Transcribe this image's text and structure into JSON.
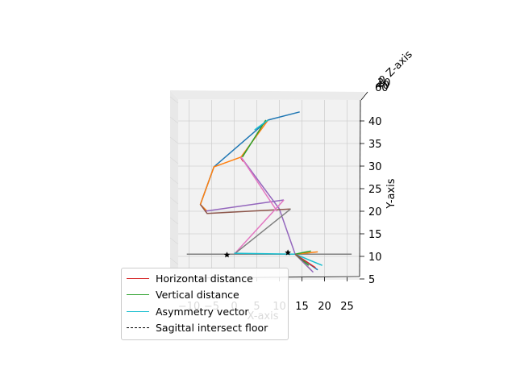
{
  "chart_data": {
    "type": "line",
    "projection": "3d",
    "xlabel": "X-axis",
    "ylabel": "Y-axis",
    "zlabel": "Z-axis",
    "x_ticks": [
      "−10",
      "−5",
      "0",
      "5",
      "10",
      "15",
      "20",
      "25"
    ],
    "y_ticks": [
      "5",
      "10",
      "15",
      "20",
      "25",
      "30",
      "35",
      "40"
    ],
    "z_ticks": [
      "60",
      "40",
      "20",
      "0"
    ],
    "grid": true,
    "legend_position": "lower-left",
    "legend": [
      {
        "label": "Horizontal distance",
        "color": "#d62728",
        "style": "solid"
      },
      {
        "label": "Vertical distance",
        "color": "#2ca02c",
        "style": "solid"
      },
      {
        "label": "Asymmetry vector",
        "color": "#17becf",
        "style": "solid"
      },
      {
        "label": "Sagittal intersect floor",
        "color": "#000000",
        "style": "dashed"
      }
    ],
    "skeleton_segments": [
      {
        "color": "#1f77b4",
        "points": [
          [
            14.5,
            42
          ],
          [
            7.5,
            40.2
          ],
          [
            -4.5,
            29.8
          ],
          [
            -7.5,
            21.5
          ]
        ]
      },
      {
        "color": "#ff7f0e",
        "points": [
          [
            7.5,
            40.2
          ],
          [
            1.5,
            32
          ],
          [
            -4.5,
            29.8
          ],
          [
            -7.5,
            21.5
          ],
          [
            -6,
            20
          ]
        ]
      },
      {
        "color": "#2ca02c",
        "points": [
          [
            7,
            40.2
          ],
          [
            1.8,
            32
          ]
        ]
      },
      {
        "color": "#17becf",
        "points": [
          [
            7.5,
            40.2
          ],
          [
            4.5,
            38
          ]
        ]
      },
      {
        "color": "#d62728",
        "points": [
          [
            1.5,
            31.8
          ],
          [
            2,
            31
          ]
        ]
      },
      {
        "color": "#9467bd",
        "points": [
          [
            1.5,
            32
          ],
          [
            10,
            20.5
          ],
          [
            13.5,
            10.5
          ],
          [
            15,
            9
          ]
        ]
      },
      {
        "color": "#9467bd",
        "points": [
          [
            -6.5,
            20
          ],
          [
            11,
            22.5
          ]
        ]
      },
      {
        "color": "#8c564b",
        "points": [
          [
            -7.5,
            21.5
          ],
          [
            -6,
            19.5
          ],
          [
            12.5,
            20.5
          ]
        ]
      },
      {
        "color": "#e377c2",
        "points": [
          [
            1.5,
            32
          ],
          [
            9.5,
            20
          ]
        ]
      },
      {
        "color": "#e377c2",
        "points": [
          [
            0,
            10.5
          ],
          [
            11,
            22.5
          ]
        ]
      },
      {
        "color": "#7f7f7f",
        "points": [
          [
            0,
            10.5
          ],
          [
            12.5,
            20.5
          ]
        ]
      },
      {
        "color": "#7f7f7f",
        "points": [
          [
            -10.5,
            10.5
          ],
          [
            26,
            10.5
          ]
        ]
      },
      {
        "color": "#bcbd22",
        "points": [
          [
            13.5,
            10.5
          ],
          [
            17,
            7
          ]
        ]
      },
      {
        "color": "#17becf",
        "points": [
          [
            13.5,
            10.5
          ],
          [
            0,
            10.7
          ]
        ]
      },
      {
        "color": "#ff7f0e",
        "points": [
          [
            13.5,
            10.5
          ],
          [
            18.5,
            11
          ]
        ]
      },
      {
        "color": "#2ca02c",
        "points": [
          [
            13.5,
            10.5
          ],
          [
            17,
            11.2
          ]
        ]
      },
      {
        "color": "#17becf",
        "points": [
          [
            13.5,
            10.5
          ],
          [
            19.5,
            8
          ]
        ]
      },
      {
        "color": "#1f77b4",
        "points": [
          [
            13.5,
            10.5
          ],
          [
            18.5,
            7
          ]
        ]
      },
      {
        "color": "#d62728",
        "points": [
          [
            13.5,
            10.5
          ],
          [
            18,
            7.5
          ]
        ]
      },
      {
        "color": "#9467bd",
        "points": [
          [
            13.5,
            10.5
          ],
          [
            17.5,
            6.5
          ]
        ]
      },
      {
        "color": "#2ca02c",
        "points": [
          [
            13.5,
            10.5
          ],
          [
            16.5,
            8
          ]
        ]
      },
      {
        "color": "#8c564b",
        "points": [
          [
            13.5,
            10.5
          ],
          [
            15.5,
            9
          ]
        ]
      }
    ],
    "markers": [
      {
        "x": 0,
        "y": 10.5,
        "symbol": "star"
      },
      {
        "x": 13.5,
        "y": 11,
        "symbol": "star"
      }
    ]
  }
}
